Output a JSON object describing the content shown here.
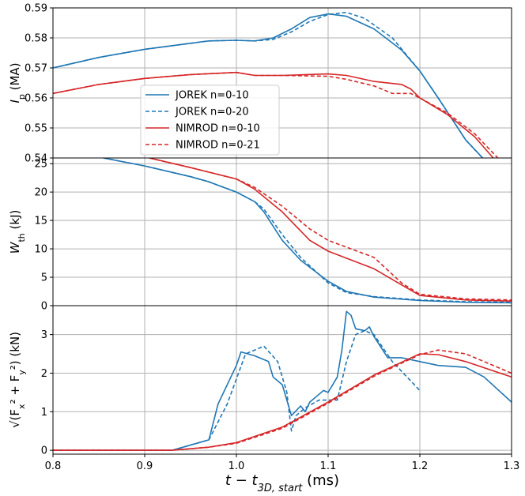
{
  "chart_data": {
    "type": "line",
    "x_range": [
      0.8,
      1.3
    ],
    "x_ticks": [
      "0.8",
      "0.9",
      "1.0",
      "1.1",
      "1.2",
      "1.3"
    ],
    "xlabel_parts": [
      "t − t",
      "3D, start",
      " (ms)"
    ],
    "grid": true,
    "series_styles": [
      {
        "name": "JOREK n=0-10",
        "color": "#1f77b4",
        "dash": "solid"
      },
      {
        "name": "JOREK n=0-20",
        "color": "#1f77b4",
        "dash": "dashed"
      },
      {
        "name": "NIMROD n=0-10",
        "color": "#d62728",
        "dash": "solid"
      },
      {
        "name": "NIMROD n=0-21",
        "color": "#d62728",
        "dash": "dashed"
      }
    ],
    "legend_location": "lower-left of top panel",
    "panels": [
      {
        "id": "ip",
        "ylabel_parts": [
          "I",
          "p",
          " (MA)"
        ],
        "ylim": [
          0.54,
          0.59
        ],
        "yticks": [
          "0.54",
          "0.55",
          "0.56",
          "0.57",
          "0.58",
          "0.59"
        ],
        "show_legend": true,
        "series": [
          {
            "name": "JOREK n=0-10",
            "points": [
              [
                0.8,
                0.57
              ],
              [
                0.85,
                0.5735
              ],
              [
                0.9,
                0.5762
              ],
              [
                0.95,
                0.5782
              ],
              [
                0.97,
                0.579
              ],
              [
                1.0,
                0.5792
              ],
              [
                1.02,
                0.579
              ],
              [
                1.04,
                0.58
              ],
              [
                1.06,
                0.583
              ],
              [
                1.08,
                0.5868
              ],
              [
                1.1,
                0.588
              ],
              [
                1.12,
                0.5872
              ],
              [
                1.15,
                0.583
              ],
              [
                1.18,
                0.576
              ],
              [
                1.2,
                0.569
              ],
              [
                1.22,
                0.56
              ],
              [
                1.25,
                0.546
              ],
              [
                1.27,
                0.5395
              ]
            ]
          },
          {
            "name": "JOREK n=0-20",
            "points": [
              [
                0.8,
                0.57
              ],
              [
                0.85,
                0.5735
              ],
              [
                0.9,
                0.5762
              ],
              [
                0.95,
                0.5782
              ],
              [
                0.97,
                0.579
              ],
              [
                1.0,
                0.5792
              ],
              [
                1.02,
                0.579
              ],
              [
                1.04,
                0.5795
              ],
              [
                1.06,
                0.582
              ],
              [
                1.08,
                0.5855
              ],
              [
                1.1,
                0.5878
              ],
              [
                1.12,
                0.5885
              ],
              [
                1.14,
                0.5865
              ],
              [
                1.17,
                0.58
              ],
              [
                1.2,
                0.569
              ],
              [
                1.22,
                0.56
              ],
              [
                1.25,
                0.546
              ],
              [
                1.27,
                0.5395
              ]
            ]
          },
          {
            "name": "NIMROD n=0-10",
            "points": [
              [
                0.8,
                0.5615
              ],
              [
                0.85,
                0.5645
              ],
              [
                0.9,
                0.5665
              ],
              [
                0.95,
                0.5678
              ],
              [
                1.0,
                0.5685
              ],
              [
                1.02,
                0.5675
              ],
              [
                1.05,
                0.5675
              ],
              [
                1.1,
                0.568
              ],
              [
                1.12,
                0.5675
              ],
              [
                1.15,
                0.5655
              ],
              [
                1.18,
                0.5645
              ],
              [
                1.19,
                0.563
              ],
              [
                1.2,
                0.56
              ],
              [
                1.23,
                0.5545
              ],
              [
                1.26,
                0.547
              ],
              [
                1.28,
                0.54
              ]
            ]
          },
          {
            "name": "NIMROD n=0-21",
            "points": [
              [
                0.8,
                0.5615
              ],
              [
                0.85,
                0.5645
              ],
              [
                0.9,
                0.5665
              ],
              [
                0.95,
                0.5678
              ],
              [
                1.0,
                0.5685
              ],
              [
                1.02,
                0.5675
              ],
              [
                1.05,
                0.5675
              ],
              [
                1.1,
                0.5672
              ],
              [
                1.12,
                0.5662
              ],
              [
                1.15,
                0.564
              ],
              [
                1.17,
                0.5615
              ],
              [
                1.19,
                0.5615
              ],
              [
                1.2,
                0.56
              ],
              [
                1.23,
                0.555
              ],
              [
                1.26,
                0.548
              ],
              [
                1.285,
                0.54
              ]
            ]
          }
        ]
      },
      {
        "id": "wth",
        "ylabel_parts": [
          "W",
          "th",
          " (kJ)"
        ],
        "ylim": [
          0,
          26
        ],
        "yticks": [
          "0",
          "5",
          "10",
          "15",
          "20",
          "25"
        ],
        "show_legend": false,
        "series": [
          {
            "name": "JOREK n=0-10",
            "points": [
              [
                0.855,
                26
              ],
              [
                0.9,
                24.6
              ],
              [
                0.95,
                22.7
              ],
              [
                0.97,
                21.8
              ],
              [
                1.0,
                20.0
              ],
              [
                1.02,
                18.3
              ],
              [
                1.03,
                16.5
              ],
              [
                1.05,
                11.5
              ],
              [
                1.07,
                8.0
              ],
              [
                1.1,
                4.3
              ],
              [
                1.12,
                2.5
              ],
              [
                1.15,
                1.5
              ],
              [
                1.2,
                0.9
              ],
              [
                1.25,
                0.6
              ],
              [
                1.3,
                0.5
              ]
            ]
          },
          {
            "name": "JOREK n=0-20",
            "points": [
              [
                0.855,
                26
              ],
              [
                0.9,
                24.6
              ],
              [
                0.95,
                22.7
              ],
              [
                0.97,
                21.8
              ],
              [
                1.0,
                20.0
              ],
              [
                1.02,
                18.3
              ],
              [
                1.03,
                17.0
              ],
              [
                1.05,
                12.5
              ],
              [
                1.07,
                8.5
              ],
              [
                1.1,
                4.0
              ],
              [
                1.12,
                2.3
              ],
              [
                1.15,
                1.6
              ],
              [
                1.2,
                1.0
              ],
              [
                1.25,
                0.7
              ],
              [
                1.3,
                0.6
              ]
            ]
          },
          {
            "name": "NIMROD n=0-10",
            "points": [
              [
                0.905,
                26
              ],
              [
                0.95,
                24.3
              ],
              [
                1.0,
                22.3
              ],
              [
                1.02,
                20.5
              ],
              [
                1.05,
                16.5
              ],
              [
                1.08,
                11.5
              ],
              [
                1.1,
                9.6
              ],
              [
                1.15,
                6.5
              ],
              [
                1.2,
                1.8
              ],
              [
                1.25,
                1.0
              ],
              [
                1.3,
                0.8
              ]
            ]
          },
          {
            "name": "NIMROD n=0-21",
            "points": [
              [
                0.905,
                26
              ],
              [
                0.95,
                24.3
              ],
              [
                1.0,
                22.3
              ],
              [
                1.02,
                20.8
              ],
              [
                1.05,
                17.5
              ],
              [
                1.08,
                13.5
              ],
              [
                1.1,
                11.5
              ],
              [
                1.15,
                8.5
              ],
              [
                1.18,
                4.0
              ],
              [
                1.2,
                2.0
              ],
              [
                1.25,
                1.2
              ],
              [
                1.3,
                1.0
              ]
            ]
          }
        ]
      },
      {
        "id": "force",
        "ylabel_parts": [
          "√(F",
          "x",
          "² + F",
          "y",
          "²) (kN)"
        ],
        "ylim": [
          -0.1,
          3.75
        ],
        "yticks": [
          "0",
          "1",
          "2",
          "3"
        ],
        "show_legend": false,
        "series": [
          {
            "name": "JOREK n=0-10",
            "points": [
              [
                0.8,
                0
              ],
              [
                0.93,
                0
              ],
              [
                0.97,
                0.27
              ],
              [
                0.98,
                1.2
              ],
              [
                1.0,
                2.2
              ],
              [
                1.005,
                2.55
              ],
              [
                1.02,
                2.45
              ],
              [
                1.035,
                2.3
              ],
              [
                1.04,
                1.9
              ],
              [
                1.05,
                1.7
              ],
              [
                1.06,
                0.9
              ],
              [
                1.07,
                1.15
              ],
              [
                1.075,
                1.0
              ],
              [
                1.08,
                1.25
              ],
              [
                1.09,
                1.45
              ],
              [
                1.095,
                1.55
              ],
              [
                1.1,
                1.5
              ],
              [
                1.11,
                1.9
              ],
              [
                1.115,
                2.6
              ],
              [
                1.12,
                3.6
              ],
              [
                1.125,
                3.5
              ],
              [
                1.13,
                3.15
              ],
              [
                1.14,
                3.1
              ],
              [
                1.145,
                3.2
              ],
              [
                1.15,
                2.95
              ],
              [
                1.165,
                2.4
              ],
              [
                1.18,
                2.4
              ],
              [
                1.2,
                2.3
              ],
              [
                1.22,
                2.2
              ],
              [
                1.25,
                2.15
              ],
              [
                1.27,
                1.9
              ],
              [
                1.3,
                1.25
              ]
            ]
          },
          {
            "name": "JOREK n=0-20",
            "points": [
              [
                0.93,
                0
              ],
              [
                0.97,
                0.27
              ],
              [
                0.99,
                1.2
              ],
              [
                1.01,
                2.5
              ],
              [
                1.02,
                2.6
              ],
              [
                1.03,
                2.7
              ],
              [
                1.045,
                2.3
              ],
              [
                1.055,
                1.5
              ],
              [
                1.06,
                0.5
              ],
              [
                1.065,
                0.9
              ],
              [
                1.075,
                1.1
              ],
              [
                1.09,
                1.3
              ],
              [
                1.1,
                1.3
              ],
              [
                1.11,
                1.3
              ],
              [
                1.12,
                2.3
              ],
              [
                1.13,
                3.0
              ],
              [
                1.14,
                3.1
              ],
              [
                1.15,
                3.0
              ],
              [
                1.17,
                2.3
              ],
              [
                1.2,
                1.55
              ]
            ]
          },
          {
            "name": "NIMROD n=0-10",
            "points": [
              [
                0.8,
                0
              ],
              [
                0.93,
                0
              ],
              [
                0.97,
                0.08
              ],
              [
                1.0,
                0.2
              ],
              [
                1.05,
                0.6
              ],
              [
                1.1,
                1.25
              ],
              [
                1.15,
                1.95
              ],
              [
                1.2,
                2.5
              ],
              [
                1.22,
                2.48
              ],
              [
                1.25,
                2.3
              ],
              [
                1.3,
                1.9
              ]
            ]
          },
          {
            "name": "NIMROD n=0-21",
            "points": [
              [
                0.8,
                0
              ],
              [
                0.93,
                0
              ],
              [
                0.97,
                0.08
              ],
              [
                1.0,
                0.18
              ],
              [
                1.05,
                0.57
              ],
              [
                1.1,
                1.22
              ],
              [
                1.15,
                1.92
              ],
              [
                1.2,
                2.48
              ],
              [
                1.22,
                2.6
              ],
              [
                1.25,
                2.5
              ],
              [
                1.3,
                2.0
              ]
            ]
          }
        ]
      }
    ]
  }
}
